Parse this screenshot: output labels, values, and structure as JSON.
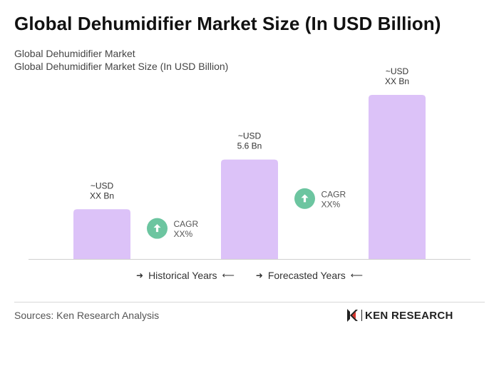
{
  "title": "Global Dehumidifier Market Size (In USD Billion)",
  "subtitles": [
    "Global Dehumidifier Market",
    "Global Dehumidifier Market Size (In USD Billion)"
  ],
  "chart_data": {
    "type": "bar",
    "categories": [
      "",
      "",
      ""
    ],
    "values": [
      1.0,
      2.0,
      3.3
    ],
    "data_labels": [
      [
        "~USD",
        "XX Bn"
      ],
      [
        "~USD",
        "5.6 Bn"
      ],
      [
        "~USD",
        "XX Bn"
      ]
    ],
    "ylim": [
      0,
      3.3
    ],
    "grid": false,
    "bar_color": "#dcc2f8",
    "cagr_badges": [
      {
        "label": "CAGR",
        "value": "XX%"
      },
      {
        "label": "CAGR",
        "value": "XX%"
      }
    ],
    "badge_color": "#6cc5a0",
    "legend": [
      "Historical Years",
      "Forecasted Years"
    ],
    "legend_placement": "bottom-center"
  },
  "footer": {
    "sources": "Sources: Ken Research Analysis",
    "logo_text": "KEN RESEARCH"
  }
}
